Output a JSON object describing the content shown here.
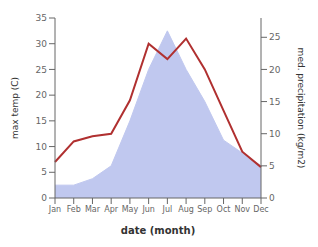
{
  "chart_data": {
    "type": "line",
    "categories": [
      "Jan",
      "Feb",
      "Mar",
      "Apr",
      "May",
      "Jun",
      "Jul",
      "Aug",
      "Sep",
      "Oct",
      "Nov",
      "Dec"
    ],
    "xlabel": "date (month)",
    "ylabel": "max temp (C)",
    "y2label": "med. precipitation (kg/m2)",
    "series": [
      {
        "type": "area",
        "color": "#c0c8ef",
        "axis": "y2",
        "values": [
          2,
          2,
          3,
          5,
          12,
          20,
          26,
          20,
          15,
          9,
          7,
          5
        ]
      },
      {
        "type": "line",
        "color": "#b03030",
        "values": [
          7,
          11,
          12,
          12.5,
          19,
          30,
          27,
          31,
          25,
          17,
          9,
          6
        ]
      }
    ],
    "ylim": [
      0,
      35
    ],
    "yticks": [
      0,
      5,
      10,
      15,
      20,
      25,
      30,
      35
    ],
    "y2lim": [
      0,
      28
    ],
    "y2ticks": [
      0,
      5,
      10,
      15,
      20,
      25
    ],
    "grid": false
  }
}
